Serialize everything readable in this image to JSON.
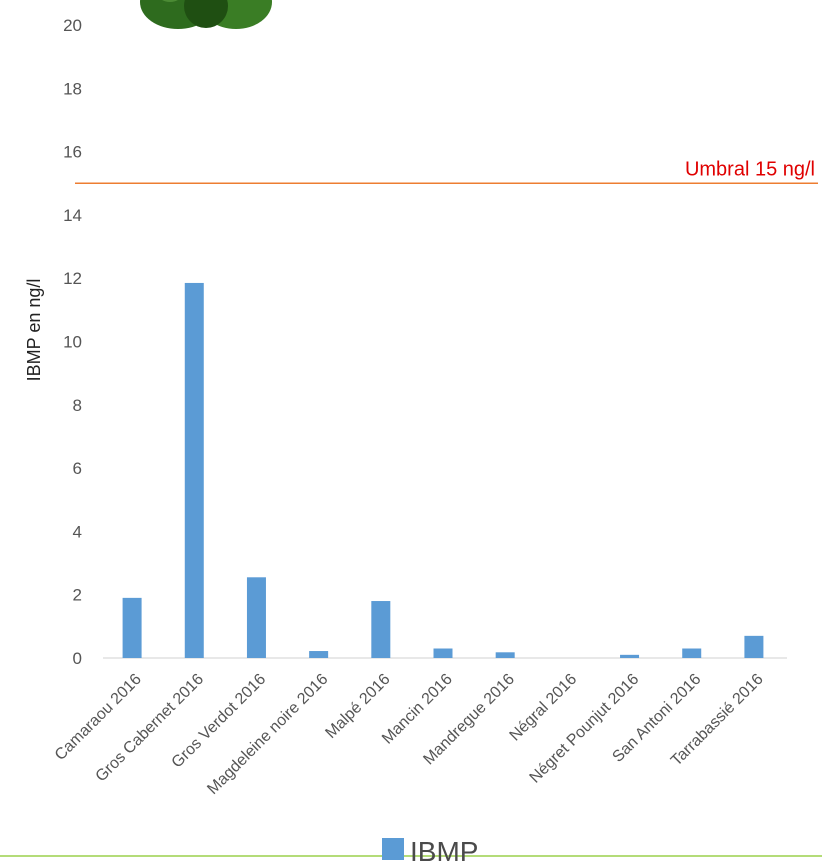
{
  "chart_data": {
    "type": "bar",
    "title": "",
    "xlabel": "",
    "ylabel": "IBMP en ng/l",
    "ylim": [
      0,
      20
    ],
    "yticks": [
      0,
      2,
      4,
      6,
      8,
      10,
      12,
      14,
      16,
      18,
      20
    ],
    "grid": false,
    "categories": [
      "Camaraou 2016",
      "Gros Cabernet 2016",
      "Gros Verdot 2016",
      "Magdeleine noire 2016",
      "Malpé 2016",
      "Mancin 2016",
      "Mandregue 2016",
      "Négral 2016",
      "Négret Pounjut 2016",
      "San Antoni 2016",
      "Tarrabassié 2016"
    ],
    "series": [
      {
        "name": "IBMP",
        "color": "#5b9bd5",
        "values": [
          1.9,
          11.85,
          2.55,
          0.22,
          1.8,
          0.3,
          0.18,
          0,
          0.1,
          0.3,
          0.7
        ]
      }
    ],
    "threshold": {
      "value": 15,
      "label": "Umbral 15 ng/l",
      "color": "#ed7d31",
      "label_color": "#e00000"
    },
    "legend": {
      "position": "bottom",
      "label": "IBMP"
    },
    "decoration": {
      "icon": "green-pepper-icon",
      "color": "#2e6b1e"
    }
  }
}
